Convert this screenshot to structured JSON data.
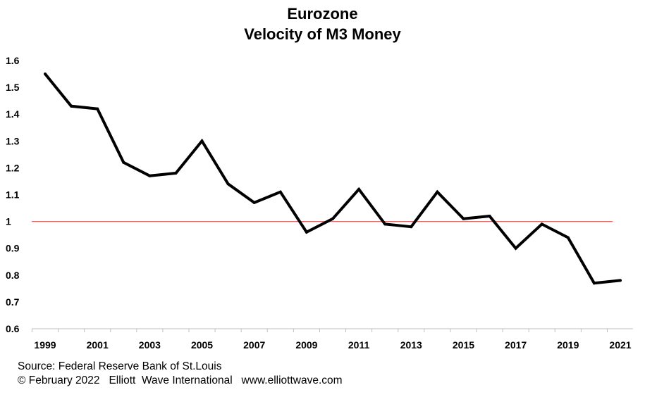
{
  "chart_data": {
    "type": "line",
    "title": "Eurozone",
    "subtitle": "Velocity of M3 Money",
    "xlabel": "",
    "ylabel": "",
    "x": [
      1999,
      2000,
      2001,
      2002,
      2003,
      2004,
      2005,
      2006,
      2007,
      2008,
      2009,
      2010,
      2011,
      2012,
      2013,
      2014,
      2015,
      2016,
      2017,
      2018,
      2019,
      2020,
      2021
    ],
    "series": [
      {
        "values": [
          1.55,
          1.43,
          1.42,
          1.22,
          1.17,
          1.18,
          1.3,
          1.14,
          1.07,
          1.11,
          0.96,
          1.01,
          1.12,
          0.99,
          0.98,
          1.11,
          1.01,
          1.02,
          0.9,
          0.99,
          0.94,
          0.77,
          0.78
        ],
        "color": "#000000"
      }
    ],
    "reference_line": {
      "y": 1,
      "color": "#e06666"
    },
    "ylim": [
      0.6,
      1.6
    ],
    "yticks": [
      "0.6",
      "0.7",
      "0.8",
      "0.9",
      "1",
      "1.1",
      "1.2",
      "1.3",
      "1.4",
      "1.5",
      "1.6"
    ],
    "xticks": [
      "1999",
      "2001",
      "2003",
      "2005",
      "2007",
      "2009",
      "2011",
      "2013",
      "2015",
      "2017",
      "2019",
      "2021"
    ],
    "grid": false,
    "legend": "none"
  },
  "footer": {
    "source": "Source: Federal Reserve Bank of St.Louis",
    "copyright": "© February 2022   Elliott  Wave International   www.elliottwave.com"
  }
}
